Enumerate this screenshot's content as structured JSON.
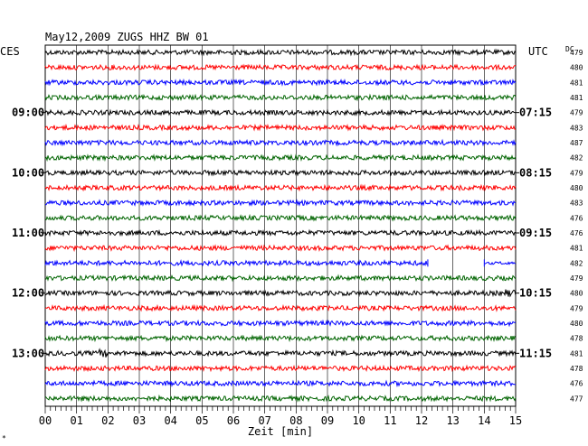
{
  "header": {
    "title": "May12,2009   ZUGS HHZ BW 01",
    "left_corner": "CES",
    "right_corner": "UTC",
    "dc_label": "DC",
    "footnote": "*"
  },
  "chart_data": {
    "type": "line",
    "title": "May12,2009   ZUGS HHZ BW 01",
    "xlabel": "Zeit [min]",
    "ylabel": "",
    "xlim": [
      0,
      15
    ],
    "x_ticks": [
      "00",
      "01",
      "02",
      "03",
      "04",
      "05",
      "06",
      "07",
      "08",
      "09",
      "10",
      "11",
      "12",
      "13",
      "14",
      "15"
    ],
    "grid": true,
    "left_time_labels": [
      {
        "row": 4,
        "label": "09:00"
      },
      {
        "row": 8,
        "label": "10:00"
      },
      {
        "row": 12,
        "label": "11:00"
      },
      {
        "row": 16,
        "label": "12:00"
      },
      {
        "row": 20,
        "label": "13:00"
      }
    ],
    "right_time_labels": [
      {
        "row": 0,
        "label": "UTC"
      },
      {
        "row": 4,
        "label": "07:15"
      },
      {
        "row": 8,
        "label": "08:15"
      },
      {
        "row": 12,
        "label": "09:15"
      },
      {
        "row": 16,
        "label": "10:15"
      },
      {
        "row": 20,
        "label": "11:15"
      }
    ],
    "trace_colors": [
      "#000000",
      "#ff0000",
      "#0000ff",
      "#006400"
    ],
    "dc_offsets": [
      "479",
      "480",
      "481",
      "481",
      "479",
      "483",
      "487",
      "482",
      "479",
      "480",
      "483",
      "476",
      "476",
      "481",
      "482",
      "479",
      "480",
      "479",
      "480",
      "478",
      "481",
      "478",
      "476",
      "477"
    ],
    "data_gap": {
      "row": 14,
      "from_min": 12.2,
      "to_min": 14.0
    },
    "notable_events": [
      {
        "row": 16,
        "at_min": 14.8
      },
      {
        "row": 20,
        "at_min": 1.8
      }
    ]
  }
}
